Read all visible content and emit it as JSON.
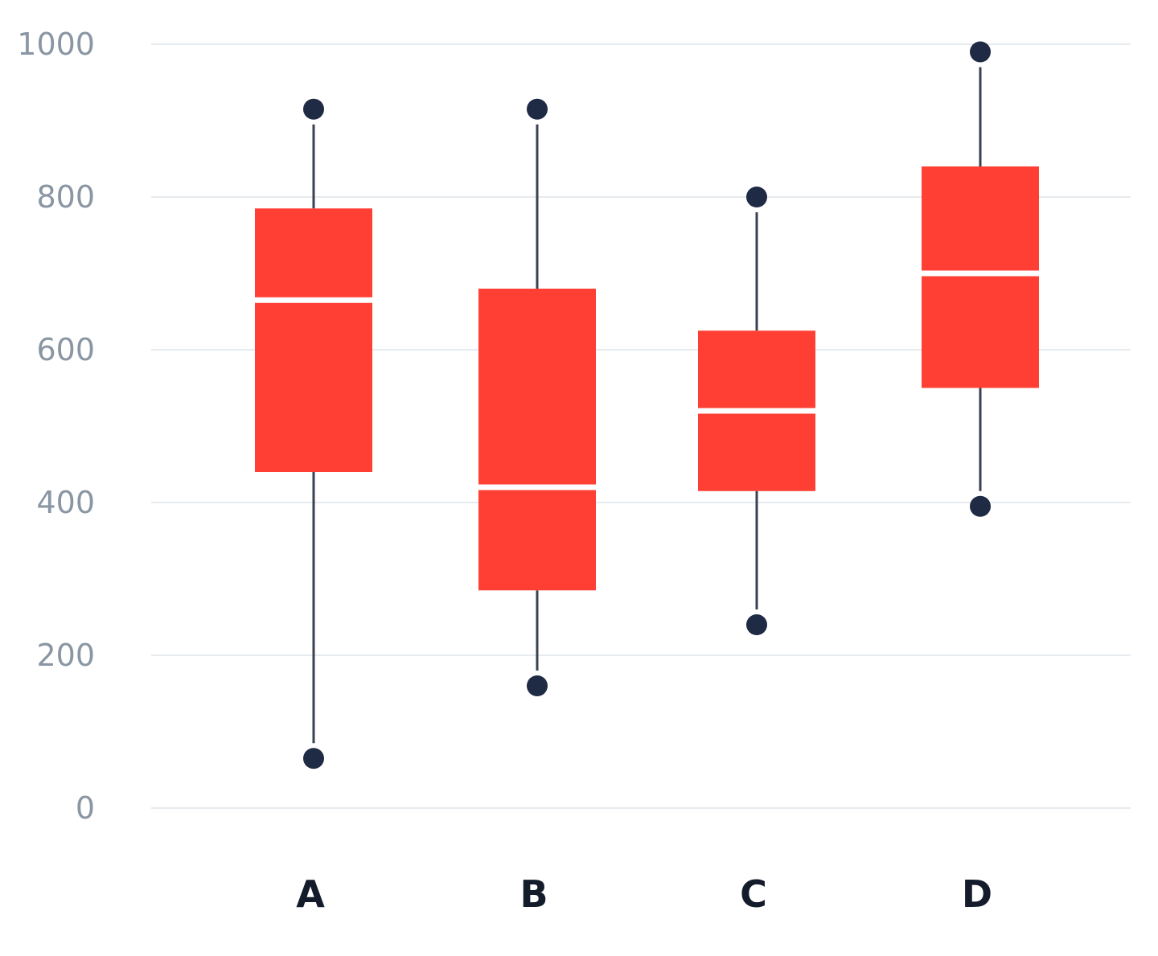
{
  "chart_data": {
    "type": "box",
    "categories": [
      "A",
      "B",
      "C",
      "D"
    ],
    "boxes": [
      {
        "category": "A",
        "whisker_low": 65,
        "q1": 440,
        "median": 665,
        "q3": 785,
        "whisker_high": 915
      },
      {
        "category": "B",
        "whisker_low": 160,
        "q1": 285,
        "median": 420,
        "q3": 680,
        "whisker_high": 915
      },
      {
        "category": "C",
        "whisker_low": 240,
        "q1": 415,
        "median": 520,
        "q3": 625,
        "whisker_high": 800
      },
      {
        "category": "D",
        "whisker_low": 395,
        "q1": 550,
        "median": 700,
        "q3": 840,
        "whisker_high": 990
      }
    ],
    "y_ticks": [
      "0",
      "200",
      "400",
      "600",
      "800",
      "1000"
    ],
    "ylim": [
      0,
      1000
    ],
    "grid": true,
    "title": "",
    "xlabel": "",
    "ylabel": ""
  },
  "colors": {
    "box_fill": "#ff3f34",
    "median": "#ffffff",
    "whisker": "#3a4150",
    "point": "#1f2a44",
    "grid": "#e6ebef",
    "y_label": "#8a96a3",
    "x_label": "#141b2b"
  }
}
